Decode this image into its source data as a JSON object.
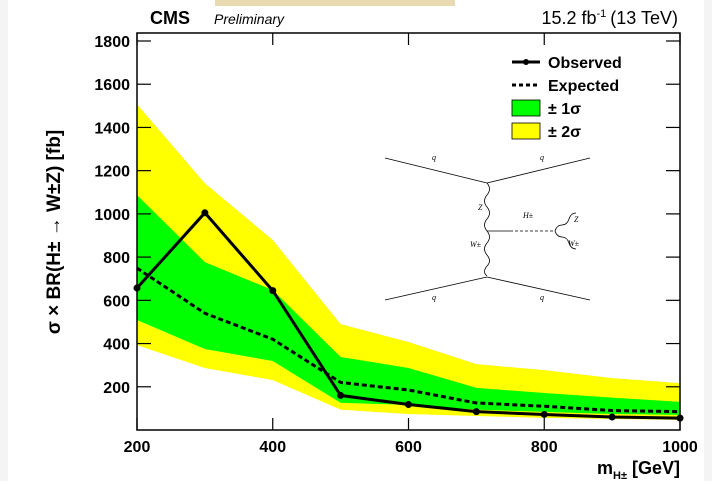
{
  "chart_data": {
    "type": "limit",
    "experiment": "CMS",
    "status": "Preliminary",
    "lumi": "15.2 fb",
    "lumi_exp": "-1",
    "energy": "(13 TeV)",
    "ylabel": "σ × BR(H± → W±Z) [fb]",
    "xlabel": "m",
    "xlabel_sub": "H±",
    "xlabel_unit": "[GeV]",
    "x": [
      200,
      300,
      400,
      500,
      600,
      700,
      800,
      900,
      1000
    ],
    "xlim": [
      200,
      1000
    ],
    "xticks": [
      200,
      400,
      600,
      800,
      1000
    ],
    "ylim": [
      0,
      1800
    ],
    "yticks": [
      200,
      400,
      600,
      800,
      1000,
      1200,
      1400,
      1600,
      1800
    ],
    "series": [
      {
        "name": "Observed",
        "color": "#000000",
        "style": "solid",
        "values": [
          657,
          1005,
          645,
          160,
          118,
          85,
          72,
          60,
          55
        ]
      },
      {
        "name": "Expected",
        "color": "#000000",
        "style": "dashed",
        "values": [
          749,
          540,
          420,
          220,
          185,
          125,
          110,
          90,
          85
        ]
      },
      {
        "name": "± 1σ",
        "color": "#00ff00",
        "style": "band",
        "upper": [
          1087,
          777,
          647,
          338,
          287,
          195,
          171,
          150,
          130
        ],
        "lower": [
          509,
          375,
          319,
          126,
          116,
          94,
          84,
          74,
          70
        ]
      },
      {
        "name": "± 2σ",
        "color": "#ffff00",
        "style": "band",
        "upper": [
          1507,
          1142,
          879,
          490,
          407,
          305,
          277,
          240,
          217
        ],
        "lower": [
          393,
          287,
          231,
          94,
          74,
          65,
          56,
          51,
          47
        ]
      }
    ],
    "diagram_labels": [
      "q",
      "q",
      "Z",
      "H±",
      "W±",
      "Z",
      "W±",
      "q",
      "q"
    ]
  }
}
